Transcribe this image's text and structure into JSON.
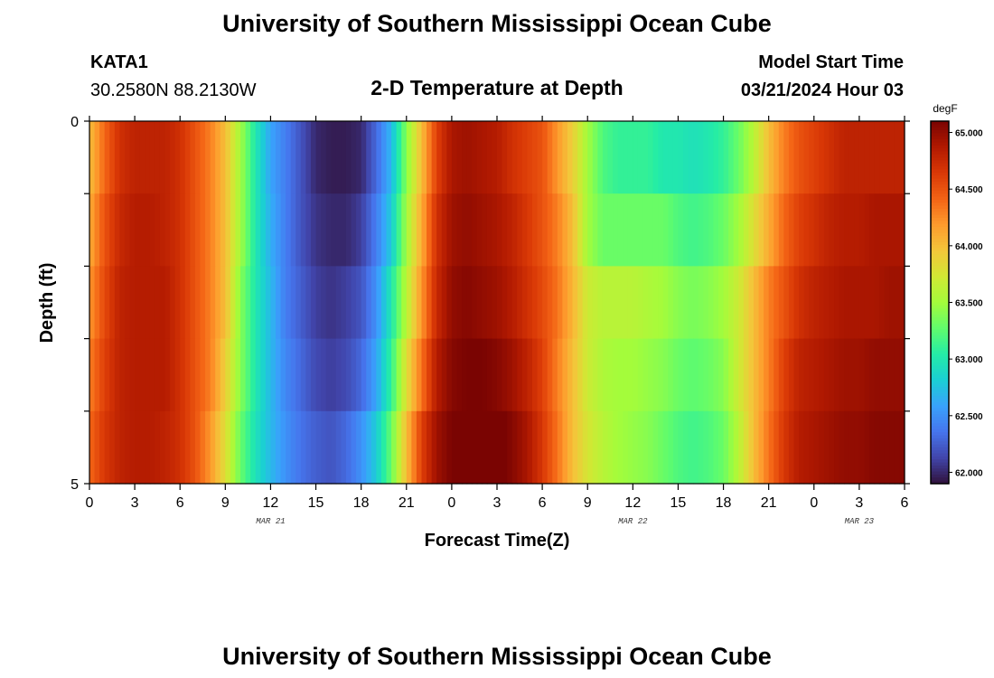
{
  "header": {
    "title": "University of Southern Mississippi Ocean Cube",
    "station": "KATA1",
    "coords": "30.2580N  88.2130W",
    "subtitle": "2-D Temperature at Depth",
    "model_start_label": "Model Start Time",
    "model_start_value": "03/21/2024 Hour 03"
  },
  "footer": {
    "title": "University of Southern Mississippi Ocean Cube"
  },
  "colors": {
    "scale": [
      "#30123b",
      "#4145ab",
      "#4675ed",
      "#39a2fc",
      "#1bcfd4",
      "#24eca6",
      "#61fc6c",
      "#a4fc3b",
      "#d1e834",
      "#f3c63a",
      "#fe9b2d",
      "#f36315",
      "#d93806",
      "#b11901",
      "#7a0402"
    ],
    "frame": "#000000",
    "text": "#000000"
  },
  "chart_data": {
    "type": "heatmap",
    "title": "2-D Temperature at Depth",
    "xlabel": "Forecast Time(Z)",
    "ylabel": "Depth (ft)",
    "x_ticks": [
      "0",
      "3",
      "6",
      "9",
      "12",
      "15",
      "18",
      "21",
      "0",
      "3",
      "6",
      "9",
      "12",
      "15",
      "18",
      "21",
      "0",
      "3",
      "6"
    ],
    "x_hours": [
      0,
      3,
      6,
      9,
      12,
      15,
      18,
      21,
      24,
      27,
      30,
      33,
      36,
      39,
      42,
      45,
      48,
      51,
      54
    ],
    "date_labels": [
      {
        "label": "MAR 21",
        "hour": 12
      },
      {
        "label": "MAR 22",
        "hour": 36
      },
      {
        "label": "MAR 23",
        "hour": 51
      }
    ],
    "y_ticks": [
      "0",
      "5"
    ],
    "ylim": [
      0,
      5
    ],
    "xlim": [
      0,
      54
    ],
    "depth_layers": 5,
    "colorbar": {
      "unit": "degF",
      "min": 61.9,
      "max": 65.1,
      "ticks": [
        "62.000",
        "62.500",
        "63.000",
        "63.500",
        "64.000",
        "64.500",
        "65.000"
      ],
      "tick_values": [
        62.0,
        62.5,
        63.0,
        63.5,
        64.0,
        64.5,
        65.0
      ]
    },
    "time_hours": [
      0,
      1,
      2,
      3,
      4,
      5,
      6,
      7,
      8,
      9,
      10,
      11,
      12,
      13,
      14,
      15,
      16,
      17,
      18,
      19,
      20,
      21,
      22,
      23,
      24,
      25,
      26,
      27,
      28,
      29,
      30,
      31,
      32,
      33,
      34,
      35,
      36,
      37,
      38,
      39,
      40,
      41,
      42,
      43,
      44,
      45,
      46,
      47,
      48,
      49,
      50,
      51,
      52,
      53,
      54
    ],
    "depth_ft": [
      0.5,
      1.5,
      2.5,
      3.5,
      4.5
    ],
    "values_by_depth": [
      [
        64.0,
        64.4,
        64.7,
        64.8,
        64.8,
        64.8,
        64.7,
        64.5,
        64.3,
        64.0,
        63.5,
        63.0,
        62.6,
        62.4,
        62.2,
        62.0,
        61.95,
        61.95,
        62.0,
        62.3,
        62.7,
        63.4,
        64.0,
        64.6,
        64.9,
        64.95,
        64.9,
        64.85,
        64.7,
        64.6,
        64.5,
        64.2,
        63.9,
        63.5,
        63.2,
        63.1,
        63.1,
        63.1,
        63.0,
        63.0,
        62.95,
        63.0,
        63.1,
        63.3,
        63.6,
        64.0,
        64.3,
        64.5,
        64.6,
        64.7,
        64.8,
        64.8,
        64.8,
        64.8,
        64.8
      ],
      [
        64.1,
        64.5,
        64.75,
        64.85,
        64.85,
        64.8,
        64.7,
        64.5,
        64.3,
        64.0,
        63.5,
        63.0,
        62.65,
        62.4,
        62.2,
        62.05,
        62.0,
        62.0,
        62.1,
        62.4,
        62.8,
        63.5,
        64.1,
        64.7,
        64.95,
        65.0,
        64.95,
        64.9,
        64.8,
        64.65,
        64.5,
        64.3,
        64.0,
        63.5,
        63.3,
        63.3,
        63.3,
        63.3,
        63.3,
        63.2,
        63.15,
        63.2,
        63.3,
        63.5,
        63.8,
        64.1,
        64.4,
        64.6,
        64.7,
        64.8,
        64.85,
        64.85,
        64.9,
        64.9,
        64.9
      ],
      [
        64.2,
        64.55,
        64.8,
        64.85,
        64.85,
        64.85,
        64.7,
        64.5,
        64.3,
        64.0,
        63.4,
        63.0,
        62.7,
        62.4,
        62.25,
        62.1,
        62.05,
        62.1,
        62.2,
        62.5,
        63.0,
        63.6,
        64.2,
        64.75,
        65.0,
        65.05,
        65.0,
        64.95,
        64.85,
        64.7,
        64.55,
        64.35,
        64.05,
        63.7,
        63.6,
        63.6,
        63.6,
        63.55,
        63.5,
        63.4,
        63.35,
        63.4,
        63.5,
        63.7,
        64.0,
        64.3,
        64.5,
        64.7,
        64.8,
        64.85,
        64.9,
        64.9,
        64.9,
        64.95,
        64.95
      ],
      [
        64.3,
        64.6,
        64.8,
        64.85,
        64.85,
        64.85,
        64.7,
        64.5,
        64.3,
        63.9,
        63.4,
        63.0,
        62.7,
        62.45,
        62.3,
        62.15,
        62.1,
        62.15,
        62.3,
        62.6,
        63.1,
        63.8,
        64.35,
        64.85,
        65.05,
        65.1,
        65.1,
        65.05,
        64.95,
        64.8,
        64.6,
        64.3,
        64.0,
        63.7,
        63.55,
        63.5,
        63.5,
        63.45,
        63.4,
        63.3,
        63.25,
        63.3,
        63.4,
        63.7,
        64.0,
        64.3,
        64.6,
        64.8,
        64.85,
        64.9,
        64.95,
        64.95,
        65.0,
        65.0,
        65.0
      ],
      [
        64.4,
        64.65,
        64.8,
        64.85,
        64.85,
        64.8,
        64.7,
        64.5,
        64.2,
        63.8,
        63.3,
        62.95,
        62.7,
        62.5,
        62.35,
        62.25,
        62.2,
        62.3,
        62.5,
        62.8,
        63.3,
        64.0,
        64.6,
        64.95,
        65.1,
        65.15,
        65.2,
        65.15,
        65.05,
        64.9,
        64.65,
        64.35,
        64.0,
        63.75,
        63.6,
        63.5,
        63.45,
        63.4,
        63.3,
        63.2,
        63.15,
        63.2,
        63.3,
        63.6,
        64.0,
        64.35,
        64.65,
        64.85,
        64.9,
        64.95,
        65.0,
        65.0,
        65.05,
        65.05,
        65.05
      ]
    ]
  }
}
